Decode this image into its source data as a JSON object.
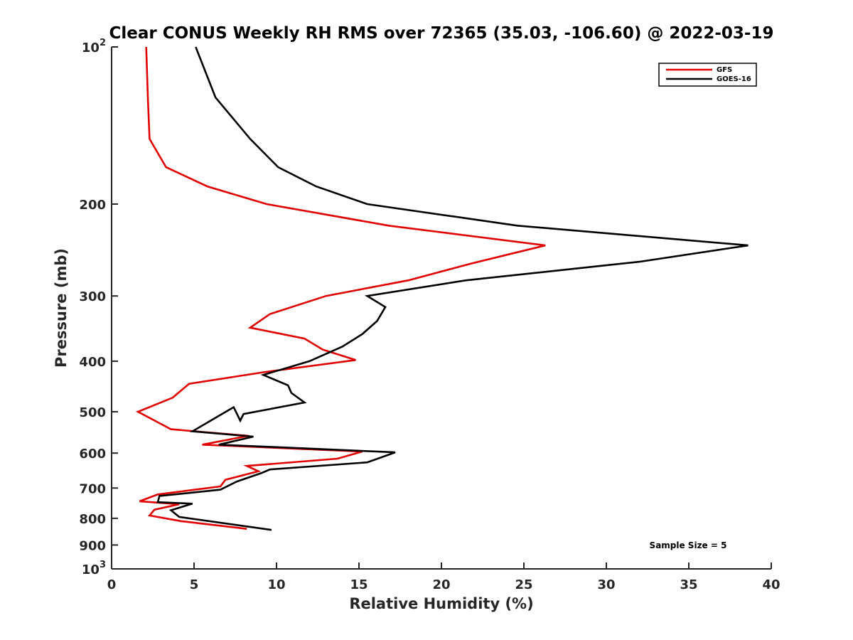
{
  "chart_data": {
    "type": "line",
    "title": "Clear CONUS Weekly RH RMS over 72365 (35.03, -106.60) @ 2022-03-19",
    "xlabel": "Relative Humidity (%)",
    "ylabel": "Pressure (mb)",
    "xlim": [
      0,
      40
    ],
    "ylim": [
      100,
      1000
    ],
    "yscale": "log",
    "y_reversed": true,
    "grid": false,
    "legend_position": "top-right",
    "x_ticks": [
      0,
      5,
      10,
      15,
      20,
      25,
      30,
      35,
      40
    ],
    "x_tick_labels": [
      "0",
      "5",
      "10",
      "15",
      "20",
      "25",
      "30",
      "35",
      "40"
    ],
    "y_ticks": [
      100,
      200,
      300,
      400,
      500,
      600,
      700,
      800,
      900,
      1000
    ],
    "y_tick_labels": [
      {
        "base": "10",
        "sup": "2"
      },
      {
        "base": "200",
        "sup": ""
      },
      {
        "base": "300",
        "sup": ""
      },
      {
        "base": "400",
        "sup": ""
      },
      {
        "base": "500",
        "sup": ""
      },
      {
        "base": "600",
        "sup": ""
      },
      {
        "base": "700",
        "sup": ""
      },
      {
        "base": "800",
        "sup": ""
      },
      {
        "base": "900",
        "sup": ""
      },
      {
        "base": "10",
        "sup": "3"
      }
    ],
    "series": [
      {
        "name": "GFS",
        "color": "#e00000",
        "points": [
          [
            2.1,
            100
          ],
          [
            2.2,
            125
          ],
          [
            2.3,
            150
          ],
          [
            3.3,
            170
          ],
          [
            5.8,
            185
          ],
          [
            9.4,
            200
          ],
          [
            16.8,
            220
          ],
          [
            26.3,
            240
          ],
          [
            21.8,
            260
          ],
          [
            18.0,
            280
          ],
          [
            13.0,
            300
          ],
          [
            9.6,
            325
          ],
          [
            8.4,
            345
          ],
          [
            11.7,
            362
          ],
          [
            12.8,
            380
          ],
          [
            14.8,
            398
          ],
          [
            9.2,
            420
          ],
          [
            4.7,
            442
          ],
          [
            3.7,
            470
          ],
          [
            1.6,
            500
          ],
          [
            3.6,
            540
          ],
          [
            8.3,
            556
          ],
          [
            5.5,
            578
          ],
          [
            15.2,
            596
          ],
          [
            13.7,
            615
          ],
          [
            8.2,
            635
          ],
          [
            8.9,
            650
          ],
          [
            6.9,
            675
          ],
          [
            6.6,
            695
          ],
          [
            2.8,
            720
          ],
          [
            1.7,
            742
          ],
          [
            4.1,
            752
          ],
          [
            2.6,
            770
          ],
          [
            2.3,
            790
          ],
          [
            4.2,
            810
          ],
          [
            8.2,
            838
          ]
        ]
      },
      {
        "name": "GOES-16",
        "color": "#000000",
        "points": [
          [
            5.1,
            100
          ],
          [
            6.3,
            125
          ],
          [
            8.4,
            150
          ],
          [
            10.1,
            170
          ],
          [
            12.4,
            185
          ],
          [
            15.5,
            200
          ],
          [
            24.6,
            220
          ],
          [
            38.6,
            240
          ],
          [
            32.0,
            258
          ],
          [
            21.5,
            280
          ],
          [
            15.5,
            300
          ],
          [
            16.6,
            315
          ],
          [
            16.1,
            335
          ],
          [
            15.2,
            355
          ],
          [
            14.0,
            375
          ],
          [
            12.0,
            400
          ],
          [
            9.2,
            425
          ],
          [
            10.7,
            445
          ],
          [
            10.9,
            460
          ],
          [
            11.7,
            480
          ],
          [
            8.0,
            505
          ],
          [
            7.8,
            520
          ],
          [
            7.4,
            490
          ],
          [
            4.9,
            545
          ],
          [
            8.6,
            558
          ],
          [
            6.5,
            578
          ],
          [
            17.2,
            598
          ],
          [
            15.5,
            625
          ],
          [
            9.6,
            645
          ],
          [
            9.1,
            655
          ],
          [
            7.6,
            680
          ],
          [
            6.6,
            705
          ],
          [
            2.9,
            725
          ],
          [
            2.8,
            745
          ],
          [
            4.9,
            750
          ],
          [
            3.6,
            772
          ],
          [
            4.1,
            795
          ],
          [
            9.7,
            842
          ]
        ]
      }
    ],
    "annotation": "Sample Size = 5"
  }
}
